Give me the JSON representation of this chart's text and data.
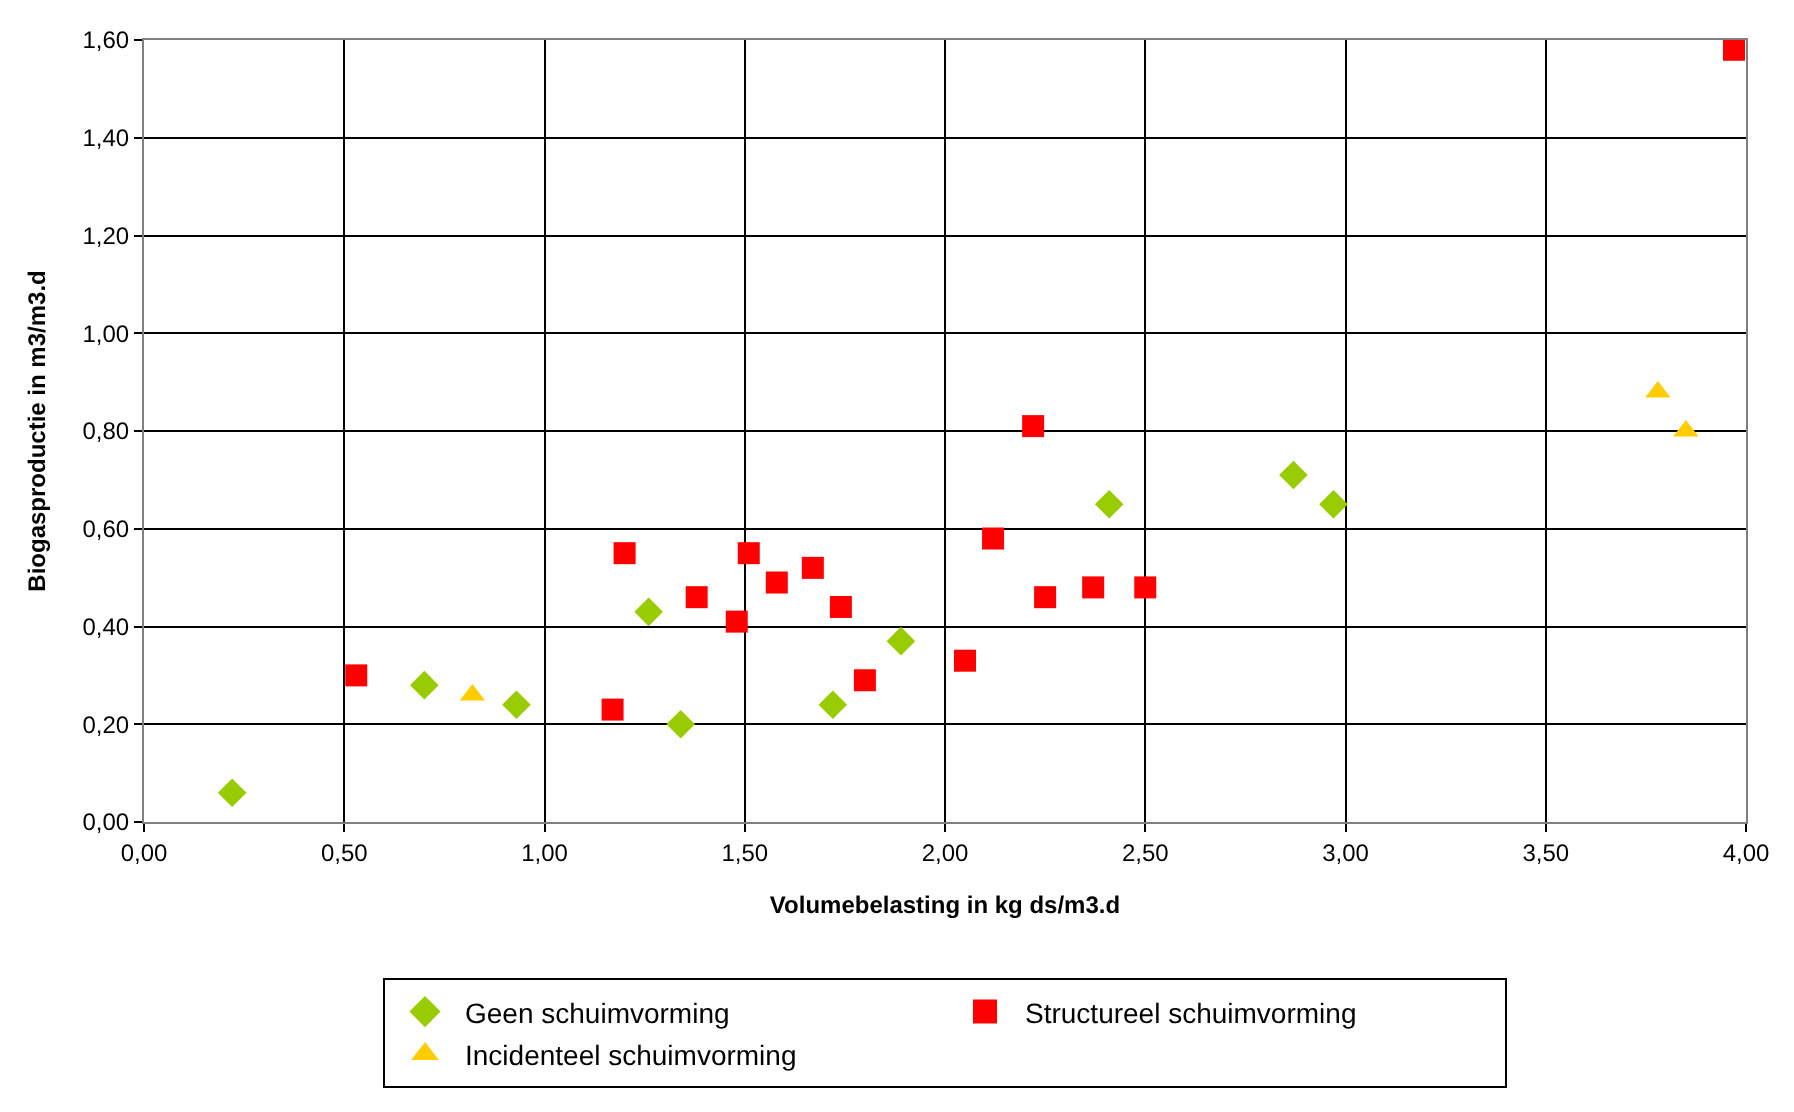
{
  "chart_data": {
    "type": "scatter",
    "xlabel": "Volumebelasting in kg ds/m3.d",
    "ylabel": "Biogasproductie in m3/m3.d",
    "xlim": [
      0,
      4
    ],
    "ylim": [
      0,
      1.6
    ],
    "xticks": [
      {
        "value": 0,
        "label": "0,00"
      },
      {
        "value": 0.5,
        "label": "0,50"
      },
      {
        "value": 1,
        "label": "1,00"
      },
      {
        "value": 1.5,
        "label": "1,50"
      },
      {
        "value": 2,
        "label": "2,00"
      },
      {
        "value": 2.5,
        "label": "2,50"
      },
      {
        "value": 3,
        "label": "3,00"
      },
      {
        "value": 3.5,
        "label": "3,50"
      },
      {
        "value": 4,
        "label": "4,00"
      }
    ],
    "yticks": [
      {
        "value": 0,
        "label": "0,00"
      },
      {
        "value": 0.2,
        "label": "0,20"
      },
      {
        "value": 0.4,
        "label": "0,40"
      },
      {
        "value": 0.6,
        "label": "0,60"
      },
      {
        "value": 0.8,
        "label": "0,80"
      },
      {
        "value": 1,
        "label": "1,00"
      },
      {
        "value": 1.2,
        "label": "1,20"
      },
      {
        "value": 1.4,
        "label": "1,40"
      },
      {
        "value": 1.6,
        "label": "1,60"
      }
    ],
    "grid": true,
    "legend": "bottom",
    "series": [
      {
        "name": "Geen schuimvorming",
        "color": "#99cc00",
        "marker": "diamond",
        "x": [
          0.22,
          0.7,
          0.93,
          1.26,
          1.34,
          1.72,
          1.89,
          2.41,
          2.87,
          2.97
        ],
        "values": [
          0.06,
          0.28,
          0.24,
          0.43,
          0.2,
          0.24,
          0.37,
          0.65,
          0.71,
          0.65
        ]
      },
      {
        "name": "Structureel schuimvorming",
        "color": "#ff0000",
        "marker": "square",
        "x": [
          0.53,
          1.2,
          1.17,
          1.38,
          1.48,
          1.51,
          1.58,
          1.67,
          1.74,
          1.8,
          2.05,
          2.12,
          2.22,
          2.25,
          2.37,
          2.5,
          3.97
        ],
        "values": [
          0.3,
          0.55,
          0.23,
          0.46,
          0.41,
          0.55,
          0.49,
          0.52,
          0.44,
          0.29,
          0.33,
          0.58,
          0.81,
          0.46,
          0.48,
          0.48,
          1.58
        ]
      },
      {
        "name": "Incidenteel schuimvorming",
        "color": "#ffcc00",
        "marker": "triangle",
        "x": [
          0.82,
          3.78,
          3.85
        ],
        "values": [
          0.26,
          0.88,
          0.8
        ]
      }
    ]
  }
}
